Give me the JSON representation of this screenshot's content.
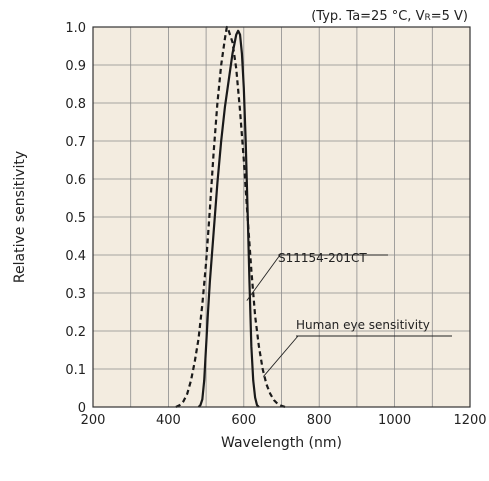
{
  "chart_data": {
    "type": "line",
    "title": "",
    "conditions": "(Typ. Ta=25 °C, VR=5 V)",
    "conditions_parts": {
      "prefix": "(Typ. Ta=25 °C, V",
      "subscript": "R",
      "suffix": "=5 V)"
    },
    "xlabel": "Wavelength (nm)",
    "ylabel": "Relative sensitivity",
    "xlim": [
      200,
      1200
    ],
    "ylim": [
      0,
      1.0
    ],
    "x_ticks": [
      "200",
      "400",
      "600",
      "800",
      "1000",
      "1200"
    ],
    "y_ticks": [
      "0",
      "0.1",
      "0.2",
      "0.3",
      "0.4",
      "0.5",
      "0.6",
      "0.7",
      "0.8",
      "0.9",
      "1.0"
    ],
    "grid": true,
    "background_color": "#f3ece0",
    "series": [
      {
        "name": "S11154-201CT",
        "style": "solid",
        "color": "#1a1a1a",
        "points": [
          [
            480,
            0.0
          ],
          [
            485,
            0.005
          ],
          [
            490,
            0.02
          ],
          [
            495,
            0.07
          ],
          [
            500,
            0.16
          ],
          [
            505,
            0.25
          ],
          [
            510,
            0.33
          ],
          [
            520,
            0.46
          ],
          [
            530,
            0.59
          ],
          [
            540,
            0.7
          ],
          [
            550,
            0.79
          ],
          [
            560,
            0.86
          ],
          [
            570,
            0.93
          ],
          [
            580,
            0.98
          ],
          [
            585,
            0.99
          ],
          [
            590,
            0.98
          ],
          [
            595,
            0.93
          ],
          [
            600,
            0.84
          ],
          [
            605,
            0.7
          ],
          [
            610,
            0.52
          ],
          [
            615,
            0.33
          ],
          [
            620,
            0.16
          ],
          [
            625,
            0.07
          ],
          [
            630,
            0.025
          ],
          [
            635,
            0.005
          ],
          [
            640,
            0.0
          ]
        ]
      },
      {
        "name": "Human eye sensitivity",
        "style": "dashed",
        "color": "#1a1a1a",
        "points": [
          [
            420,
            0.0
          ],
          [
            430,
            0.005
          ],
          [
            440,
            0.015
          ],
          [
            450,
            0.035
          ],
          [
            460,
            0.07
          ],
          [
            470,
            0.12
          ],
          [
            480,
            0.18
          ],
          [
            490,
            0.27
          ],
          [
            500,
            0.38
          ],
          [
            510,
            0.52
          ],
          [
            520,
            0.67
          ],
          [
            530,
            0.8
          ],
          [
            540,
            0.9
          ],
          [
            550,
            0.97
          ],
          [
            555,
            1.0
          ],
          [
            560,
            0.99
          ],
          [
            570,
            0.96
          ],
          [
            580,
            0.89
          ],
          [
            590,
            0.78
          ],
          [
            600,
            0.65
          ],
          [
            610,
            0.5
          ],
          [
            620,
            0.36
          ],
          [
            630,
            0.24
          ],
          [
            640,
            0.16
          ],
          [
            650,
            0.1
          ],
          [
            660,
            0.06
          ],
          [
            670,
            0.035
          ],
          [
            680,
            0.018
          ],
          [
            690,
            0.008
          ],
          [
            700,
            0.003
          ],
          [
            710,
            0.0
          ]
        ]
      }
    ],
    "annotations": [
      {
        "text": "S11154-201CT",
        "series": "S11154-201CT",
        "points_to": [
          608,
          0.28
        ]
      },
      {
        "text": "Human eye sensitivity",
        "series": "Human eye sensitivity",
        "points_to": [
          652,
          0.08
        ]
      }
    ]
  }
}
